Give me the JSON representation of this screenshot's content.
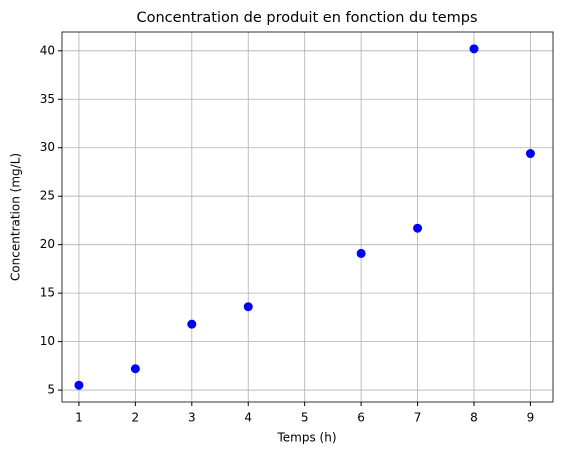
{
  "chart_data": {
    "type": "scatter",
    "title": "Concentration de produit en fonction du temps",
    "x_label": "Temps (h)",
    "y_label": "Concentration (mg/L)",
    "x": [
      1,
      2,
      3,
      4,
      6,
      7,
      8,
      9
    ],
    "values": [
      5.5,
      7.2,
      11.8,
      13.6,
      19.1,
      21.7,
      40.2,
      29.4
    ],
    "color": "#0000ff",
    "xlim": [
      0.7,
      9.4
    ],
    "xticks": [
      1,
      2,
      3,
      4,
      5,
      6,
      7,
      8,
      9
    ],
    "ylim": [
      3.77,
      41.94
    ],
    "yticks": [
      5,
      10,
      15,
      20,
      25,
      30,
      35,
      40
    ],
    "grid": true
  }
}
